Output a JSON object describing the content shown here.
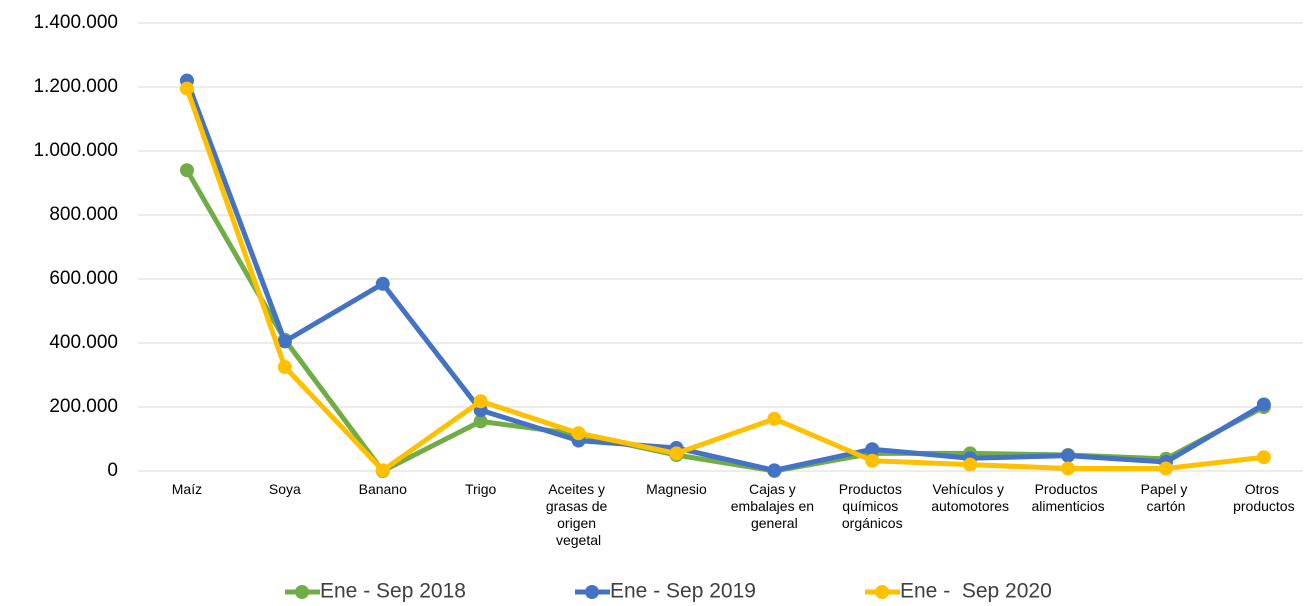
{
  "chart_data": {
    "type": "line",
    "categories": [
      "Maíz",
      "Soya",
      "Banano",
      "Trigo",
      "Aceites y grasas de origen vegetal",
      "Magnesio",
      "Cajas y embalajes en general",
      "Productos químicos orgánicos",
      "Vehículos y automotores",
      "Productos alimenticios",
      "Papel y cartón",
      "Otros productos"
    ],
    "series": [
      {
        "name": "Ene - Sep 2018",
        "color": "#70ad47",
        "values": [
          940000,
          410000,
          0,
          155000,
          115000,
          50000,
          0,
          55000,
          55000,
          50000,
          38000,
          200000
        ]
      },
      {
        "name": "Ene - Sep 2019",
        "color": "#4472c4",
        "values": [
          1220000,
          405000,
          585000,
          190000,
          95000,
          72000,
          2000,
          68000,
          40000,
          48000,
          28000,
          208000
        ]
      },
      {
        "name": "Ene -  Sep 2020",
        "color": "#ffc000",
        "values": [
          1195000,
          325000,
          2000,
          218000,
          118000,
          55000,
          163000,
          32000,
          20000,
          8000,
          8000,
          43000
        ]
      }
    ],
    "ylim": [
      0,
      1400000
    ],
    "yticks": [
      0,
      {
        "value": 200000,
        "label": "200.000"
      },
      {
        "value": 400000,
        "label": "400.000"
      },
      {
        "value": 600000,
        "label": "600.000"
      },
      {
        "value": 800000,
        "label": "800.000"
      },
      {
        "value": 1000000,
        "label": "1.000.000"
      },
      {
        "value": 1200000,
        "label": "1.200.000"
      },
      {
        "value": 1400000,
        "label": "1.400.000"
      }
    ],
    "grid": true,
    "legend": "bottom"
  }
}
